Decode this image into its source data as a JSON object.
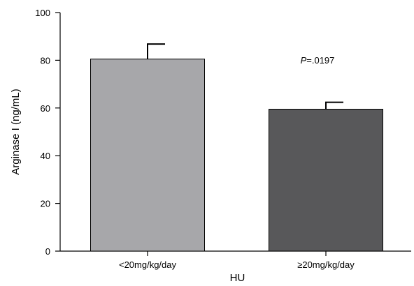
{
  "chart_data": {
    "type": "bar",
    "categories": [
      "<20mg/kg/day",
      "≥20mg/kg/day"
    ],
    "values": [
      80.5,
      59.5
    ],
    "error_upper": [
      86.8,
      62.4
    ],
    "bar_colors": [
      "#a7a7aa",
      "#58585a"
    ],
    "xlabel": "HU",
    "ylabel": "Arginase I (ng/mL)",
    "ylim": [
      0,
      100
    ],
    "yticks": [
      0,
      20,
      40,
      60,
      80,
      100
    ],
    "yticks_labels": [
      "0",
      "20",
      "40",
      "60",
      "80",
      "100"
    ],
    "grid": false,
    "annotation": {
      "italic": "P",
      "text": "=.0197"
    }
  }
}
